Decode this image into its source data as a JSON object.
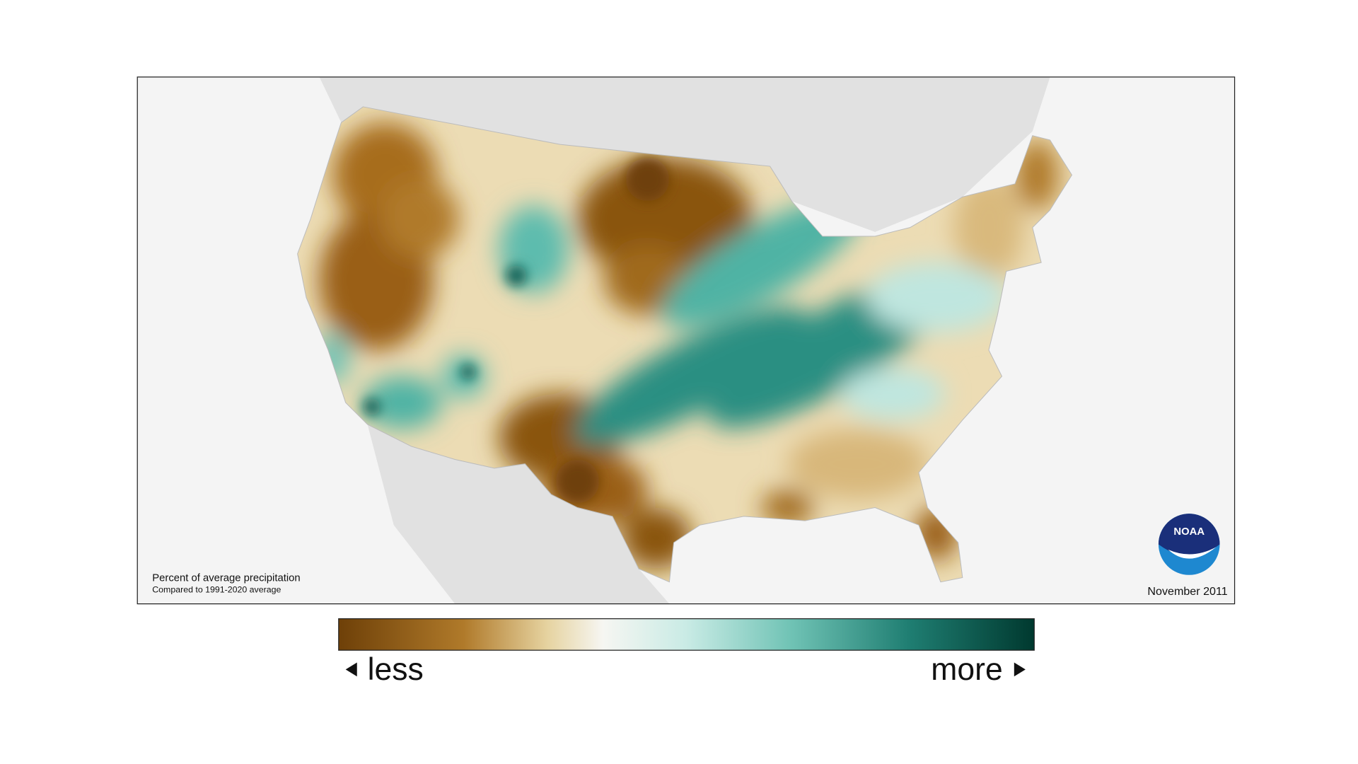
{
  "map": {
    "caption_title": "Percent of average precipitation",
    "caption_subtitle": "Compared to 1991-2020 average",
    "date": "November 2011",
    "logo": "NOAA"
  },
  "legend": {
    "low_label": "less",
    "high_label": "more"
  }
}
